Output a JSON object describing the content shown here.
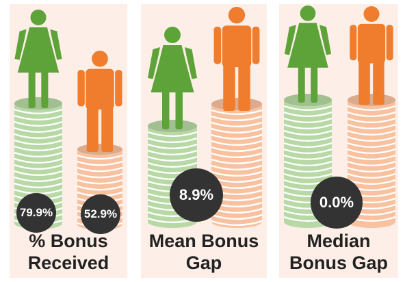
{
  "colors": {
    "female": "#5ea33a",
    "male": "#f07d2d",
    "female_coin": "#b8d9a6",
    "male_coin": "#f8c2a0",
    "badge": "#333333"
  },
  "chart_data": [
    {
      "type": "pictograph",
      "label_lines": [
        "% Bonus",
        "Received"
      ],
      "series": [
        {
          "group": "female",
          "value": 79.9,
          "display": "79.9%"
        },
        {
          "group": "male",
          "value": 52.9,
          "display": "52.9%"
        }
      ]
    },
    {
      "type": "pictograph",
      "label_lines": [
        "Mean Bonus",
        "Gap"
      ],
      "value": 8.9,
      "display": "8.9%"
    },
    {
      "type": "pictograph",
      "label_lines": [
        "Median",
        "Bonus Gap"
      ],
      "value": 0.0,
      "display": "0.0%"
    }
  ]
}
